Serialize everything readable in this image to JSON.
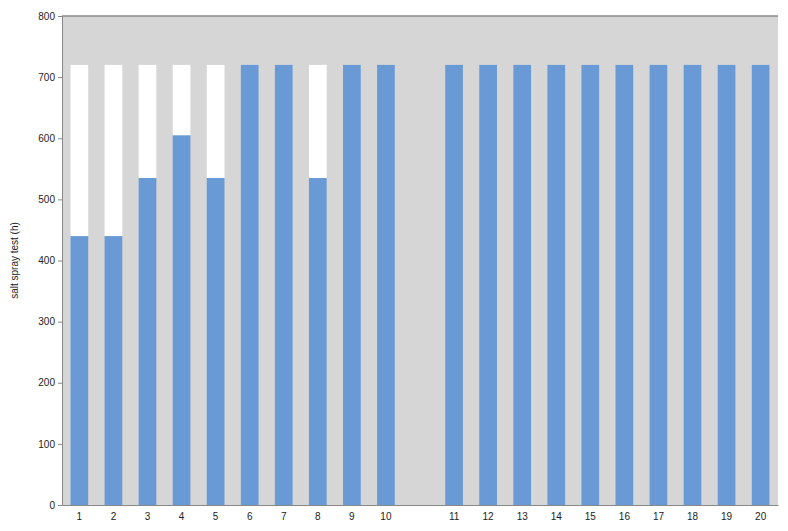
{
  "chart_data": {
    "type": "bar",
    "stacked": true,
    "grid": false,
    "y_label": "salt spray test (h)",
    "categories": [
      "1",
      "2",
      "3",
      "4",
      "5",
      "6",
      "7",
      "8",
      "9",
      "10",
      null,
      "11",
      "12",
      "13",
      "14",
      "15",
      "16",
      "17",
      "18",
      "19",
      "20"
    ],
    "series": [
      {
        "color": "#6a9ad6",
        "values": [
          440,
          440,
          535,
          605,
          535,
          720,
          720,
          535,
          720,
          720,
          null,
          720,
          720,
          720,
          720,
          720,
          720,
          720,
          720,
          720,
          720
        ]
      },
      {
        "color": "#ffffff",
        "values": [
          280,
          280,
          185,
          115,
          185,
          0,
          0,
          185,
          0,
          0,
          null,
          0,
          0,
          0,
          0,
          0,
          0,
          0,
          0,
          0,
          0
        ]
      }
    ],
    "ylim": [
      0,
      800
    ],
    "yticks": [
      0,
      100,
      200,
      300,
      400,
      500,
      600,
      700,
      800
    ]
  }
}
